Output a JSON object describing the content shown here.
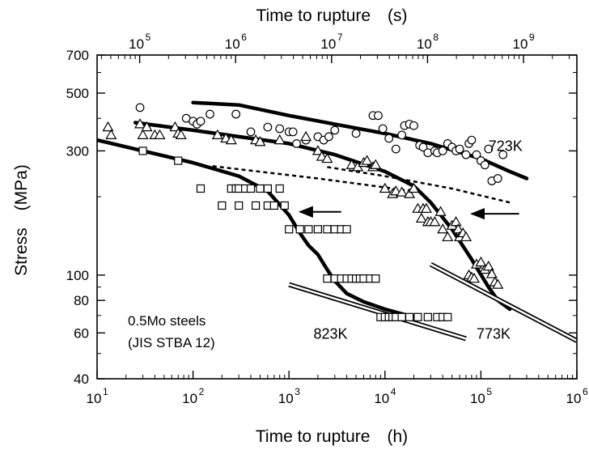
{
  "chart_data": {
    "type": "scatter",
    "title": "",
    "xlabel": "Time to rupture　(h)",
    "x2label": "Time to rupture　(s)",
    "ylabel": "Stress　(MPa)",
    "xscale": "log",
    "yscale": "log",
    "xlim": [
      10,
      1000000
    ],
    "ylim": [
      40,
      700
    ],
    "x2lim": [
      36000,
      3600000000
    ],
    "grid": false,
    "xticks": [
      10,
      100,
      1000,
      10000,
      100000,
      1000000
    ],
    "xtick_labels": [
      {
        "base": "10",
        "exp": "1"
      },
      {
        "base": "10",
        "exp": "2"
      },
      {
        "base": "10",
        "exp": "3"
      },
      {
        "base": "10",
        "exp": "4"
      },
      {
        "base": "10",
        "exp": "5"
      },
      {
        "base": "10",
        "exp": "6"
      }
    ],
    "x2ticks": [
      100000,
      1000000,
      10000000,
      100000000,
      1000000000
    ],
    "x2tick_labels": [
      {
        "base": "10",
        "exp": "5"
      },
      {
        "base": "10",
        "exp": "6"
      },
      {
        "base": "10",
        "exp": "7"
      },
      {
        "base": "10",
        "exp": "8"
      },
      {
        "base": "10",
        "exp": "9"
      }
    ],
    "yticks": [
      40,
      60,
      80,
      100,
      300,
      500,
      700
    ],
    "ytick_labels": [
      "40",
      "60",
      "80",
      "100",
      "300",
      "500",
      "700"
    ],
    "annotations": {
      "material": "0.5Mo steels",
      "standard": "(JIS STBA 12)",
      "labels": [
        {
          "text": "723K",
          "x": 120000,
          "y": 300
        },
        {
          "text": "773K",
          "x": 90000,
          "y": 57
        },
        {
          "text": "823K",
          "x": 1800,
          "y": 57
        }
      ]
    },
    "series": [
      {
        "temperature": "723K",
        "marker": "circle",
        "points": [
          [
            28,
            440
          ],
          [
            85,
            400
          ],
          [
            100,
            390
          ],
          [
            110,
            380
          ],
          [
            120,
            390
          ],
          [
            150,
            415
          ],
          [
            280,
            415
          ],
          [
            400,
            355
          ],
          [
            600,
            370
          ],
          [
            800,
            365
          ],
          [
            1000,
            355
          ],
          [
            1100,
            355
          ],
          [
            1200,
            320
          ],
          [
            1500,
            330
          ],
          [
            2000,
            340
          ],
          [
            2300,
            330
          ],
          [
            2600,
            340
          ],
          [
            3000,
            360
          ],
          [
            5000,
            350
          ],
          [
            7500,
            410
          ],
          [
            8500,
            410
          ],
          [
            9500,
            365
          ],
          [
            11000,
            335
          ],
          [
            13000,
            305
          ],
          [
            15000,
            345
          ],
          [
            16000,
            375
          ],
          [
            18000,
            380
          ],
          [
            20000,
            375
          ],
          [
            23000,
            315
          ],
          [
            25000,
            310
          ],
          [
            28000,
            295
          ],
          [
            33000,
            300
          ],
          [
            35000,
            295
          ],
          [
            40000,
            300
          ],
          [
            45000,
            320
          ],
          [
            50000,
            310
          ],
          [
            55000,
            300
          ],
          [
            60000,
            305
          ],
          [
            70000,
            290
          ],
          [
            75000,
            320
          ],
          [
            80000,
            330
          ],
          [
            90000,
            290
          ],
          [
            100000,
            275
          ],
          [
            110000,
            265
          ],
          [
            120000,
            305
          ],
          [
            130000,
            230
          ],
          [
            150000,
            235
          ],
          [
            170000,
            290
          ]
        ]
      },
      {
        "temperature": "773K",
        "marker": "triangle",
        "points": [
          [
            13,
            370
          ],
          [
            14,
            345
          ],
          [
            28,
            380
          ],
          [
            30,
            345
          ],
          [
            33,
            370
          ],
          [
            40,
            345
          ],
          [
            45,
            345
          ],
          [
            65,
            370
          ],
          [
            70,
            350
          ],
          [
            75,
            345
          ],
          [
            180,
            345
          ],
          [
            220,
            335
          ],
          [
            250,
            330
          ],
          [
            450,
            330
          ],
          [
            500,
            325
          ],
          [
            800,
            330
          ],
          [
            1500,
            340
          ],
          [
            2000,
            300
          ],
          [
            2200,
            285
          ],
          [
            2500,
            280
          ],
          [
            4500,
            265
          ],
          [
            5200,
            260
          ],
          [
            6000,
            270
          ],
          [
            6500,
            275
          ],
          [
            7500,
            260
          ],
          [
            8000,
            265
          ],
          [
            10000,
            215
          ],
          [
            12000,
            205
          ],
          [
            13000,
            210
          ],
          [
            15000,
            208
          ],
          [
            18000,
            205
          ],
          [
            20000,
            215
          ],
          [
            22000,
            180
          ],
          [
            24000,
            165
          ],
          [
            25000,
            180
          ],
          [
            27000,
            180
          ],
          [
            28000,
            160
          ],
          [
            30000,
            160
          ],
          [
            33000,
            160
          ],
          [
            38000,
            175
          ],
          [
            40000,
            150
          ],
          [
            45000,
            140
          ],
          [
            50000,
            155
          ],
          [
            55000,
            160
          ],
          [
            58000,
            150
          ],
          [
            60000,
            140
          ],
          [
            65000,
            145
          ],
          [
            70000,
            140
          ],
          [
            75000,
            100
          ],
          [
            80000,
            98
          ],
          [
            85000,
            97
          ],
          [
            90000,
            110
          ],
          [
            100000,
            112
          ],
          [
            110000,
            105
          ],
          [
            120000,
            108
          ],
          [
            130000,
            101
          ],
          [
            140000,
            94
          ],
          [
            150000,
            92
          ]
        ]
      },
      {
        "temperature": "823K",
        "marker": "square",
        "points": [
          [
            30,
            300
          ],
          [
            70,
            275
          ],
          [
            120,
            215
          ],
          [
            250,
            215
          ],
          [
            280,
            215
          ],
          [
            300,
            215
          ],
          [
            350,
            215
          ],
          [
            400,
            215
          ],
          [
            500,
            215
          ],
          [
            600,
            215
          ],
          [
            800,
            215
          ],
          [
            200,
            185
          ],
          [
            300,
            185
          ],
          [
            450,
            185
          ],
          [
            600,
            185
          ],
          [
            700,
            185
          ],
          [
            900,
            185
          ],
          [
            1000,
            150
          ],
          [
            1300,
            150
          ],
          [
            1600,
            150
          ],
          [
            2000,
            150
          ],
          [
            2500,
            150
          ],
          [
            3000,
            150
          ],
          [
            3500,
            150
          ],
          [
            4000,
            150
          ],
          [
            2500,
            97
          ],
          [
            3000,
            97
          ],
          [
            3500,
            97
          ],
          [
            4000,
            97
          ],
          [
            4500,
            97
          ],
          [
            5000,
            97
          ],
          [
            5500,
            97
          ],
          [
            6000,
            97
          ],
          [
            7000,
            97
          ],
          [
            8000,
            97
          ],
          [
            9000,
            69
          ],
          [
            10000,
            69
          ],
          [
            11000,
            69
          ],
          [
            12000,
            69
          ],
          [
            13000,
            69
          ],
          [
            15000,
            69
          ],
          [
            18000,
            69
          ],
          [
            22000,
            69
          ],
          [
            28000,
            69
          ],
          [
            35000,
            69
          ],
          [
            40000,
            69
          ],
          [
            45000,
            69
          ]
        ]
      }
    ],
    "curves": [
      {
        "temperature": "723K",
        "style": "solid-thick",
        "points": [
          [
            100,
            460
          ],
          [
            300,
            450
          ],
          [
            1000,
            410
          ],
          [
            3000,
            380
          ],
          [
            10000,
            350
          ],
          [
            30000,
            320
          ],
          [
            100000,
            280
          ],
          [
            200000,
            250
          ],
          [
            300000,
            235
          ]
        ]
      },
      {
        "temperature": "773K",
        "style": "solid-thick",
        "points": [
          [
            25,
            385
          ],
          [
            100,
            360
          ],
          [
            300,
            340
          ],
          [
            1000,
            320
          ],
          [
            3000,
            290
          ],
          [
            10000,
            250
          ],
          [
            20000,
            220
          ],
          [
            30000,
            190
          ],
          [
            50000,
            150
          ],
          [
            80000,
            115
          ],
          [
            120000,
            90
          ],
          [
            150000,
            80
          ],
          [
            200000,
            74
          ]
        ]
      },
      {
        "temperature": "823K",
        "style": "solid-thick",
        "points": [
          [
            10,
            330
          ],
          [
            30,
            300
          ],
          [
            100,
            270
          ],
          [
            300,
            240
          ],
          [
            600,
            210
          ],
          [
            1000,
            170
          ],
          [
            1300,
            145
          ],
          [
            1600,
            130
          ],
          [
            2000,
            120
          ],
          [
            2500,
            105
          ],
          [
            3000,
            95
          ],
          [
            4000,
            85
          ],
          [
            6000,
            79
          ],
          [
            10000,
            74
          ],
          [
            15000,
            71
          ],
          [
            20000,
            69
          ]
        ]
      },
      {
        "temperature": "823K",
        "style": "dashed",
        "points": [
          [
            160,
            262
          ],
          [
            2000,
            235
          ],
          [
            20000,
            210
          ]
        ]
      },
      {
        "temperature": "773K",
        "style": "dashed",
        "points": [
          [
            2500,
            260
          ],
          [
            10000,
            240
          ],
          [
            50000,
            215
          ],
          [
            200000,
            190
          ]
        ]
      },
      {
        "temperature": "823K",
        "style": "double-line",
        "points": [
          [
            1000,
            92
          ],
          [
            70000,
            57
          ]
        ]
      },
      {
        "temperature": "773K",
        "style": "double-line",
        "points": [
          [
            30000,
            110
          ],
          [
            1000000,
            56
          ]
        ]
      }
    ],
    "arrows": [
      {
        "from": [
          3500,
          175
        ],
        "to": [
          1300,
          175
        ]
      },
      {
        "from": [
          250000,
          172
        ],
        "to": [
          80000,
          172
        ]
      }
    ]
  }
}
